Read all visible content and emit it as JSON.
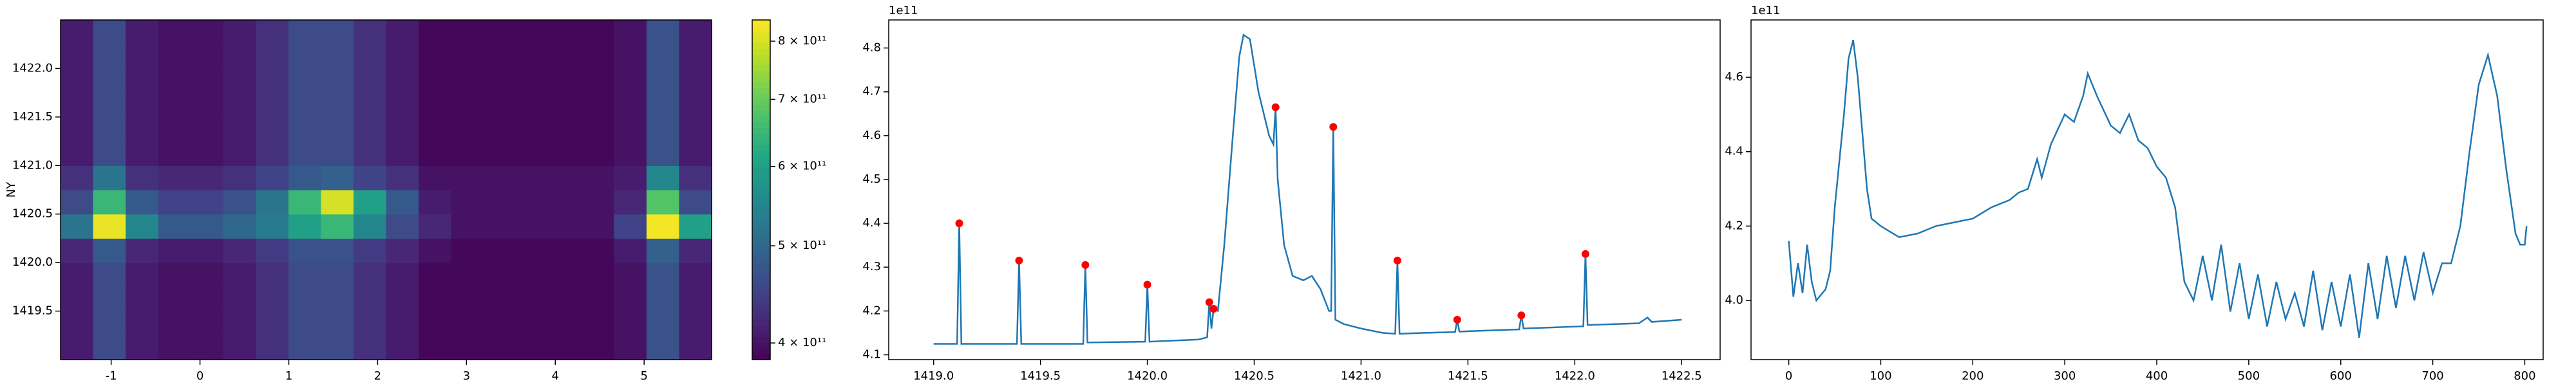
{
  "chart_data": [
    {
      "type": "heatmap",
      "xlim": [
        -1.57,
        5.76
      ],
      "ylim": [
        1419.0,
        1422.5
      ],
      "xticks": [
        -1,
        0,
        1,
        2,
        3,
        4,
        5
      ],
      "yticks": [
        1419.5,
        {
          "value": 1420.0,
          "label": "1420.0"
        },
        1420.5,
        {
          "value": 1421.0,
          "label": "1421.0"
        },
        1421.5,
        {
          "value": 1422.0,
          "label": "1422.0"
        }
      ],
      "ylabel": "NY",
      "z": [
        [
          410000000000.0,
          460000000000.0,
          410000000000.0,
          400000000000.0,
          400000000000.0,
          410000000000.0,
          430000000000.0,
          460000000000.0,
          460000000000.0,
          430000000000.0,
          410000000000.0,
          390000000000.0,
          390000000000.0,
          390000000000.0,
          390000000000.0,
          390000000000.0,
          390000000000.0,
          400000000000.0,
          470000000000.0,
          410000000000.0
        ],
        [
          410000000000.0,
          460000000000.0,
          410000000000.0,
          400000000000.0,
          400000000000.0,
          410000000000.0,
          430000000000.0,
          460000000000.0,
          460000000000.0,
          430000000000.0,
          410000000000.0,
          390000000000.0,
          390000000000.0,
          390000000000.0,
          390000000000.0,
          390000000000.0,
          390000000000.0,
          400000000000.0,
          470000000000.0,
          410000000000.0
        ],
        [
          410000000000.0,
          460000000000.0,
          410000000000.0,
          400000000000.0,
          400000000000.0,
          410000000000.0,
          430000000000.0,
          460000000000.0,
          460000000000.0,
          430000000000.0,
          410000000000.0,
          390000000000.0,
          390000000000.0,
          390000000000.0,
          390000000000.0,
          390000000000.0,
          390000000000.0,
          400000000000.0,
          470000000000.0,
          410000000000.0
        ],
        [
          410000000000.0,
          460000000000.0,
          410000000000.0,
          400000000000.0,
          400000000000.0,
          410000000000.0,
          430000000000.0,
          460000000000.0,
          460000000000.0,
          430000000000.0,
          410000000000.0,
          390000000000.0,
          390000000000.0,
          390000000000.0,
          390000000000.0,
          390000000000.0,
          390000000000.0,
          400000000000.0,
          470000000000.0,
          410000000000.0
        ],
        [
          420000000000.0,
          480000000000.0,
          420000000000.0,
          410000000000.0,
          410000000000.0,
          420000000000.0,
          440000000000.0,
          470000000000.0,
          470000000000.0,
          440000000000.0,
          420000000000.0,
          400000000000.0,
          390000000000.0,
          390000000000.0,
          390000000000.0,
          390000000000.0,
          390000000000.0,
          410000000000.0,
          490000000000.0,
          420000000000.0
        ],
        [
          520000000000.0,
          820000000000.0,
          550000000000.0,
          480000000000.0,
          480000000000.0,
          500000000000.0,
          530000000000.0,
          600000000000.0,
          650000000000.0,
          550000000000.0,
          460000000000.0,
          420000000000.0,
          400000000000.0,
          400000000000.0,
          400000000000.0,
          400000000000.0,
          400000000000.0,
          450000000000.0,
          830000000000.0,
          600000000000.0
        ],
        [
          460000000000.0,
          650000000000.0,
          480000000000.0,
          450000000000.0,
          450000000000.0,
          470000000000.0,
          520000000000.0,
          650000000000.0,
          800000000000.0,
          600000000000.0,
          480000000000.0,
          410000000000.0,
          400000000000.0,
          400000000000.0,
          400000000000.0,
          400000000000.0,
          400000000000.0,
          420000000000.0,
          680000000000.0,
          460000000000.0
        ],
        [
          430000000000.0,
          520000000000.0,
          430000000000.0,
          420000000000.0,
          420000000000.0,
          430000000000.0,
          450000000000.0,
          480000000000.0,
          490000000000.0,
          450000000000.0,
          430000000000.0,
          400000000000.0,
          400000000000.0,
          400000000000.0,
          400000000000.0,
          400000000000.0,
          400000000000.0,
          410000000000.0,
          550000000000.0,
          430000000000.0
        ],
        [
          410000000000.0,
          460000000000.0,
          410000000000.0,
          400000000000.0,
          400000000000.0,
          410000000000.0,
          430000000000.0,
          460000000000.0,
          460000000000.0,
          430000000000.0,
          410000000000.0,
          390000000000.0,
          390000000000.0,
          390000000000.0,
          390000000000.0,
          390000000000.0,
          390000000000.0,
          400000000000.0,
          470000000000.0,
          410000000000.0
        ],
        [
          410000000000.0,
          460000000000.0,
          410000000000.0,
          400000000000.0,
          400000000000.0,
          410000000000.0,
          430000000000.0,
          460000000000.0,
          460000000000.0,
          430000000000.0,
          410000000000.0,
          390000000000.0,
          390000000000.0,
          390000000000.0,
          390000000000.0,
          390000000000.0,
          390000000000.0,
          400000000000.0,
          470000000000.0,
          410000000000.0
        ],
        [
          410000000000.0,
          460000000000.0,
          410000000000.0,
          400000000000.0,
          400000000000.0,
          410000000000.0,
          430000000000.0,
          460000000000.0,
          460000000000.0,
          430000000000.0,
          410000000000.0,
          390000000000.0,
          390000000000.0,
          390000000000.0,
          390000000000.0,
          390000000000.0,
          390000000000.0,
          400000000000.0,
          470000000000.0,
          410000000000.0
        ],
        [
          410000000000.0,
          460000000000.0,
          410000000000.0,
          400000000000.0,
          400000000000.0,
          410000000000.0,
          430000000000.0,
          460000000000.0,
          460000000000.0,
          430000000000.0,
          410000000000.0,
          390000000000.0,
          390000000000.0,
          390000000000.0,
          390000000000.0,
          390000000000.0,
          390000000000.0,
          400000000000.0,
          470000000000.0,
          410000000000.0
        ],
        [
          410000000000.0,
          460000000000.0,
          410000000000.0,
          400000000000.0,
          400000000000.0,
          410000000000.0,
          430000000000.0,
          460000000000.0,
          460000000000.0,
          430000000000.0,
          410000000000.0,
          390000000000.0,
          390000000000.0,
          390000000000.0,
          390000000000.0,
          390000000000.0,
          390000000000.0,
          400000000000.0,
          470000000000.0,
          410000000000.0
        ],
        [
          410000000000.0,
          460000000000.0,
          410000000000.0,
          400000000000.0,
          400000000000.0,
          410000000000.0,
          430000000000.0,
          460000000000.0,
          460000000000.0,
          430000000000.0,
          410000000000.0,
          390000000000.0,
          390000000000.0,
          390000000000.0,
          390000000000.0,
          390000000000.0,
          390000000000.0,
          400000000000.0,
          470000000000.0,
          410000000000.0
        ]
      ],
      "colorbar": {
        "cmap": "viridis",
        "log": true,
        "clim": [
          385000000000.0,
          840000000000.0
        ],
        "ticks": [
          {
            "value": 400000000000.0,
            "label": "4 × 10¹¹"
          },
          {
            "value": 500000000000.0,
            "label": "5 × 10¹¹"
          },
          {
            "value": 600000000000.0,
            "label": "6 × 10¹¹"
          },
          {
            "value": 700000000000.0,
            "label": "7 × 10¹¹"
          },
          {
            "value": 800000000000.0,
            "label": "8 × 10¹¹"
          }
        ]
      }
    },
    {
      "type": "line",
      "offset_text": "1e11",
      "xlim": [
        1418.79,
        1422.68
      ],
      "ylim": [
        4.089,
        4.864
      ],
      "xticks": [
        {
          "value": 1419.0,
          "label": "1419.0"
        },
        1419.5,
        {
          "value": 1420.0,
          "label": "1420.0"
        },
        1420.5,
        {
          "value": 1421.0,
          "label": "1421.0"
        },
        1421.5,
        {
          "value": 1422.0,
          "label": "1422.0"
        },
        1422.5
      ],
      "yticks": [
        4.1,
        4.2,
        4.3,
        4.4,
        4.5,
        4.6,
        4.7,
        4.8
      ],
      "x": [
        1419.0,
        1419.11,
        1419.12,
        1419.13,
        1419.39,
        1419.4,
        1419.41,
        1419.7,
        1419.71,
        1419.72,
        1419.99,
        1420.0,
        1420.01,
        1420.24,
        1420.28,
        1420.29,
        1420.3,
        1420.31,
        1420.33,
        1420.36,
        1420.4,
        1420.43,
        1420.45,
        1420.48,
        1420.52,
        1420.57,
        1420.59,
        1420.6,
        1420.61,
        1420.64,
        1420.68,
        1420.73,
        1420.77,
        1420.81,
        1420.85,
        1420.86,
        1420.87,
        1420.88,
        1420.92,
        1421.0,
        1421.1,
        1421.16,
        1421.17,
        1421.18,
        1421.3,
        1421.44,
        1421.45,
        1421.46,
        1421.74,
        1421.75,
        1421.76,
        1422.04,
        1422.05,
        1422.06,
        1422.3,
        1422.34,
        1422.36,
        1422.5
      ],
      "series": [
        {
          "color": "#1f77b4",
          "values": [
            4.125,
            4.125,
            4.4,
            4.125,
            4.125,
            4.315,
            4.125,
            4.125,
            4.305,
            4.128,
            4.13,
            4.26,
            4.13,
            4.135,
            4.14,
            4.22,
            4.16,
            4.205,
            4.2,
            4.35,
            4.6,
            4.78,
            4.83,
            4.82,
            4.7,
            4.6,
            4.58,
            4.665,
            4.5,
            4.35,
            4.28,
            4.27,
            4.28,
            4.25,
            4.2,
            4.2,
            4.62,
            4.18,
            4.17,
            4.16,
            4.15,
            4.148,
            4.315,
            4.148,
            4.15,
            4.152,
            4.18,
            4.153,
            4.158,
            4.19,
            4.16,
            4.165,
            4.33,
            4.168,
            4.172,
            4.185,
            4.175,
            4.18
          ]
        }
      ],
      "markers": {
        "color": "#ff0000",
        "x": [
          1419.12,
          1419.4,
          1419.71,
          1420.0,
          1420.29,
          1420.31,
          1420.6,
          1420.87,
          1421.17,
          1421.45,
          1421.75,
          1422.05
        ],
        "values": [
          4.4,
          4.315,
          4.305,
          4.26,
          4.22,
          4.205,
          4.665,
          4.62,
          4.315,
          4.18,
          4.19,
          4.33
        ]
      }
    },
    {
      "type": "line",
      "offset_text": "1e11",
      "xlim": [
        -41,
        820
      ],
      "ylim": [
        3.841,
        4.754
      ],
      "xticks": [
        0,
        100,
        200,
        300,
        400,
        500,
        600,
        700,
        800
      ],
      "yticks": [
        {
          "value": 4.0,
          "label": "4.0"
        },
        4.2,
        4.4,
        4.6
      ],
      "x": [
        0,
        5,
        10,
        15,
        20,
        25,
        30,
        40,
        45,
        50,
        60,
        65,
        70,
        75,
        80,
        85,
        90,
        100,
        120,
        140,
        160,
        180,
        200,
        220,
        240,
        250,
        260,
        270,
        275,
        285,
        300,
        310,
        320,
        325,
        335,
        350,
        360,
        370,
        380,
        390,
        400,
        410,
        420,
        425,
        430,
        440,
        450,
        460,
        470,
        480,
        490,
        500,
        510,
        520,
        530,
        540,
        550,
        560,
        570,
        580,
        590,
        600,
        610,
        620,
        630,
        640,
        650,
        660,
        670,
        680,
        690,
        700,
        710,
        720,
        730,
        740,
        750,
        760,
        770,
        780,
        790,
        795,
        800,
        802
      ],
      "series": [
        {
          "color": "#1f77b4",
          "values": [
            4.16,
            4.01,
            4.1,
            4.02,
            4.15,
            4.05,
            4.0,
            4.03,
            4.08,
            4.25,
            4.5,
            4.65,
            4.7,
            4.6,
            4.45,
            4.3,
            4.22,
            4.2,
            4.17,
            4.18,
            4.2,
            4.21,
            4.22,
            4.25,
            4.27,
            4.29,
            4.3,
            4.38,
            4.33,
            4.42,
            4.5,
            4.48,
            4.55,
            4.61,
            4.55,
            4.47,
            4.45,
            4.5,
            4.43,
            4.41,
            4.36,
            4.33,
            4.25,
            4.15,
            4.05,
            4.0,
            4.12,
            4.0,
            4.15,
            3.97,
            4.1,
            3.95,
            4.07,
            3.93,
            4.05,
            3.95,
            4.02,
            3.93,
            4.08,
            3.92,
            4.05,
            3.93,
            4.07,
            3.9,
            4.1,
            3.95,
            4.12,
            3.98,
            4.12,
            4.0,
            4.13,
            4.02,
            4.1,
            4.1,
            4.2,
            4.4,
            4.58,
            4.66,
            4.55,
            4.35,
            4.18,
            4.15,
            4.15,
            4.2
          ]
        }
      ]
    }
  ]
}
